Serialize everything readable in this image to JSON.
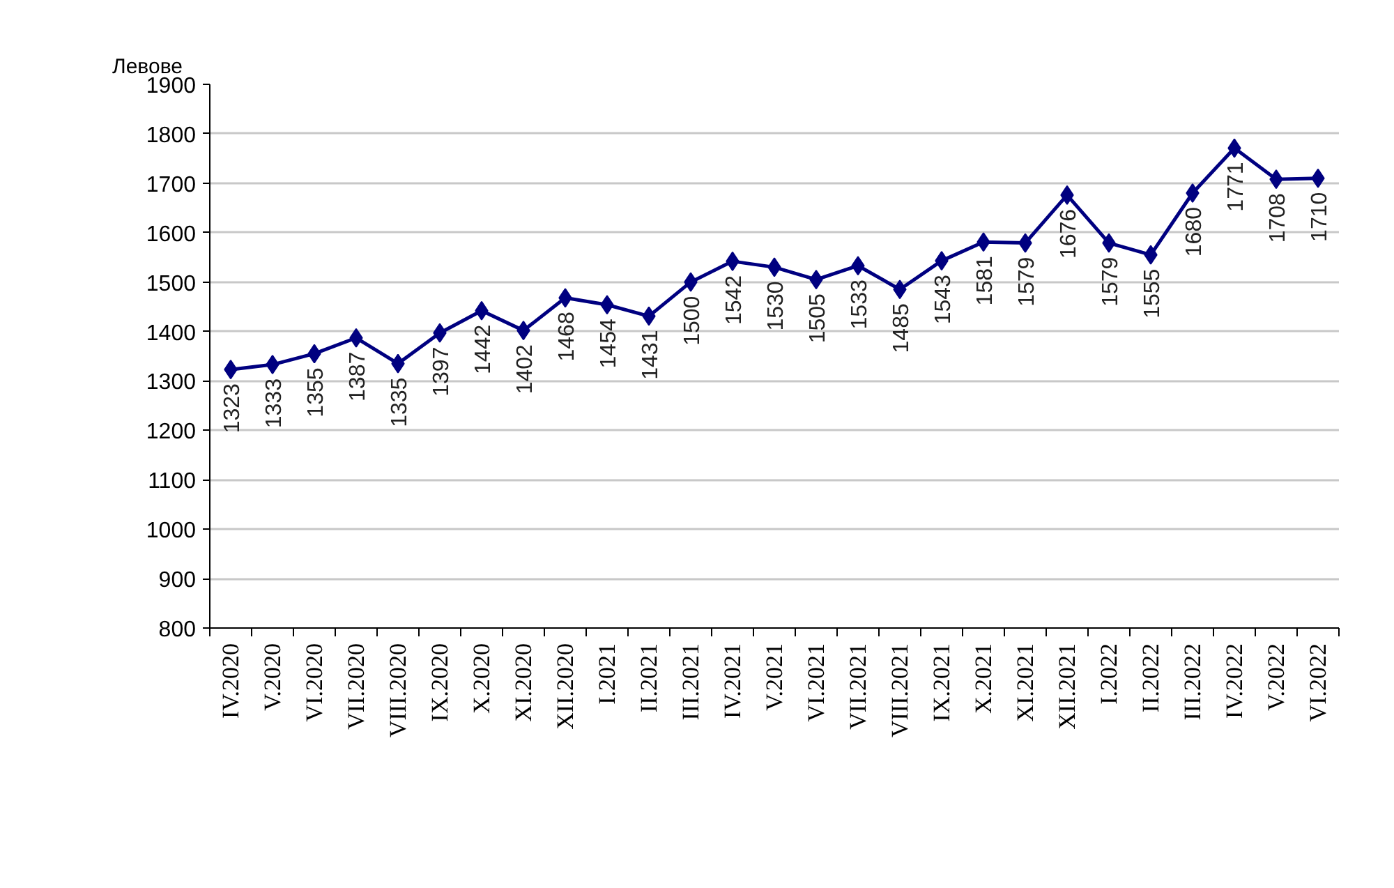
{
  "chart_data": {
    "type": "line",
    "ylabel": "Левове",
    "categories": [
      "IV.2020",
      "V.2020",
      "VI.2020",
      "VII.2020",
      "VIII.2020",
      "IX.2020",
      "X.2020",
      "XI.2020",
      "XII.2020",
      "I.2021",
      "II.2021",
      "III.2021",
      "IV.2021",
      "V.2021",
      "VI.2021",
      "VII.2021",
      "VIII.2021",
      "IX.2021",
      "X.2021",
      "XI.2021",
      "XII.2021",
      "I.2022",
      "II.2022",
      "III.2022",
      "IV.2022",
      "V.2022",
      "VI.2022"
    ],
    "series": [
      {
        "color": "#000080",
        "values": [
          1323,
          1333,
          1355,
          1387,
          1335,
          1397,
          1442,
          1402,
          1468,
          1454,
          1431,
          1500,
          1542,
          1530,
          1505,
          1533,
          1485,
          1543,
          1581,
          1579,
          1676,
          1579,
          1555,
          1680,
          1771,
          1708,
          1710
        ]
      }
    ],
    "ylim": [
      800,
      1900
    ],
    "yticks": [
      800,
      900,
      1000,
      1100,
      1200,
      1300,
      1400,
      1500,
      1600,
      1700,
      1800,
      1900
    ],
    "grid": "y",
    "marker": "diamond",
    "line_style": "solid",
    "data_labels": true
  }
}
